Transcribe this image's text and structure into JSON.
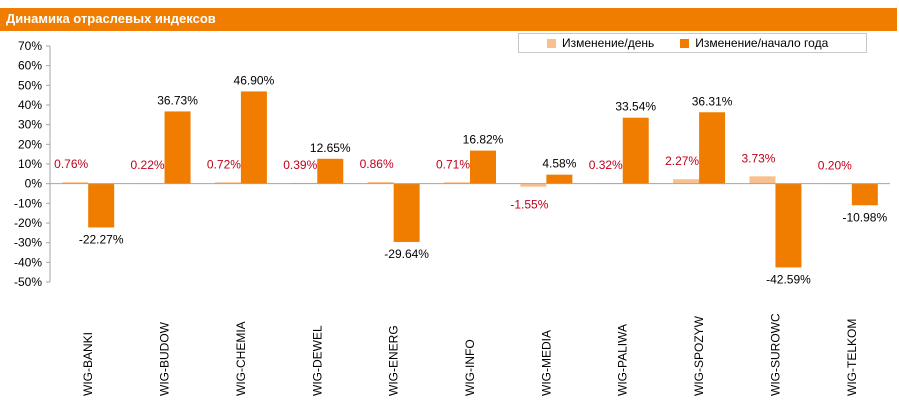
{
  "header": {
    "title": "Динамика отраслевых индексов"
  },
  "colors": {
    "accent": "#f07d00",
    "daily": "#f9c08e",
    "ytd": "#f07d00",
    "daily_label": "#c0001a",
    "ytd_label": "#000000",
    "zero_line": "#a6a6a6"
  },
  "chart_data": {
    "type": "bar",
    "title": "Динамика отраслевых индексов",
    "categories": [
      "WIG-BANKI",
      "WIG-BUDOW",
      "WIG-CHEMIA",
      "WIG-DEWEL",
      "WIG-ENERG",
      "WIG-INFO",
      "WIG-MEDIA",
      "WIG-PALIWA",
      "WIG-SPOZYW",
      "WIG-SUROWC",
      "WIG-TELKOM"
    ],
    "series": [
      {
        "name": "Изменение/день",
        "values": [
          0.76,
          0.22,
          0.72,
          0.39,
          0.86,
          0.71,
          -1.55,
          0.32,
          2.27,
          3.73,
          0.2
        ],
        "labels": [
          "0.76%",
          "0.22%",
          "0.72%",
          "0.39%",
          "0.86%",
          "0.71%",
          "-1.55%",
          "0.32%",
          "2.27%",
          "3.73%",
          "0.20%"
        ]
      },
      {
        "name": "Изменение/начало года",
        "values": [
          -22.27,
          36.73,
          46.9,
          12.65,
          -29.64,
          16.82,
          4.58,
          33.54,
          36.31,
          -42.59,
          -10.98
        ],
        "labels": [
          "-22.27%",
          "36.73%",
          "46.90%",
          "12.65%",
          "-29.64%",
          "16.82%",
          "4.58%",
          "33.54%",
          "36.31%",
          "-42.59%",
          "-10.98%"
        ]
      }
    ],
    "yticks": [
      "70%",
      "60%",
      "50%",
      "40%",
      "30%",
      "20%",
      "10%",
      "0%",
      "-10%",
      "-20%",
      "-30%",
      "-40%",
      "-50%"
    ],
    "ylim": [
      -50,
      70
    ],
    "grid": false,
    "legend": "top-right"
  }
}
